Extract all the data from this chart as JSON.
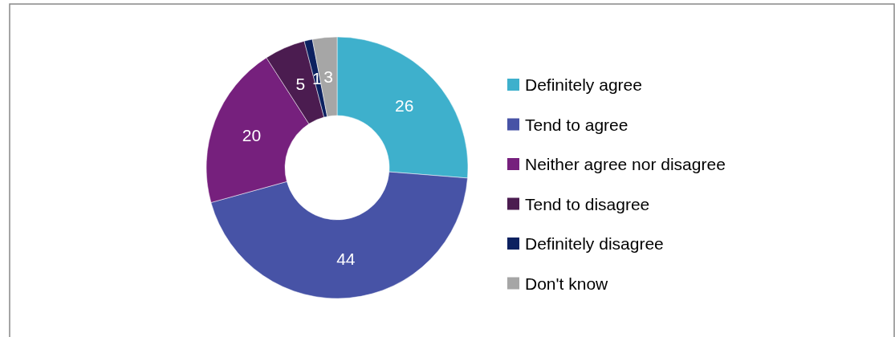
{
  "chart_data": {
    "type": "donut",
    "categories": [
      "Definitely agree",
      "Tend to agree",
      "Neither agree nor disagree",
      "Tend to disagree",
      "Definitely disagree",
      "Don't know"
    ],
    "values": [
      26,
      44,
      20,
      5,
      1,
      3
    ],
    "colors": [
      "#3eb0cc",
      "#4753a6",
      "#76207d",
      "#4b1c50",
      "#0c2160",
      "#a6a6a6"
    ],
    "data_labels": true,
    "legend": "right"
  }
}
